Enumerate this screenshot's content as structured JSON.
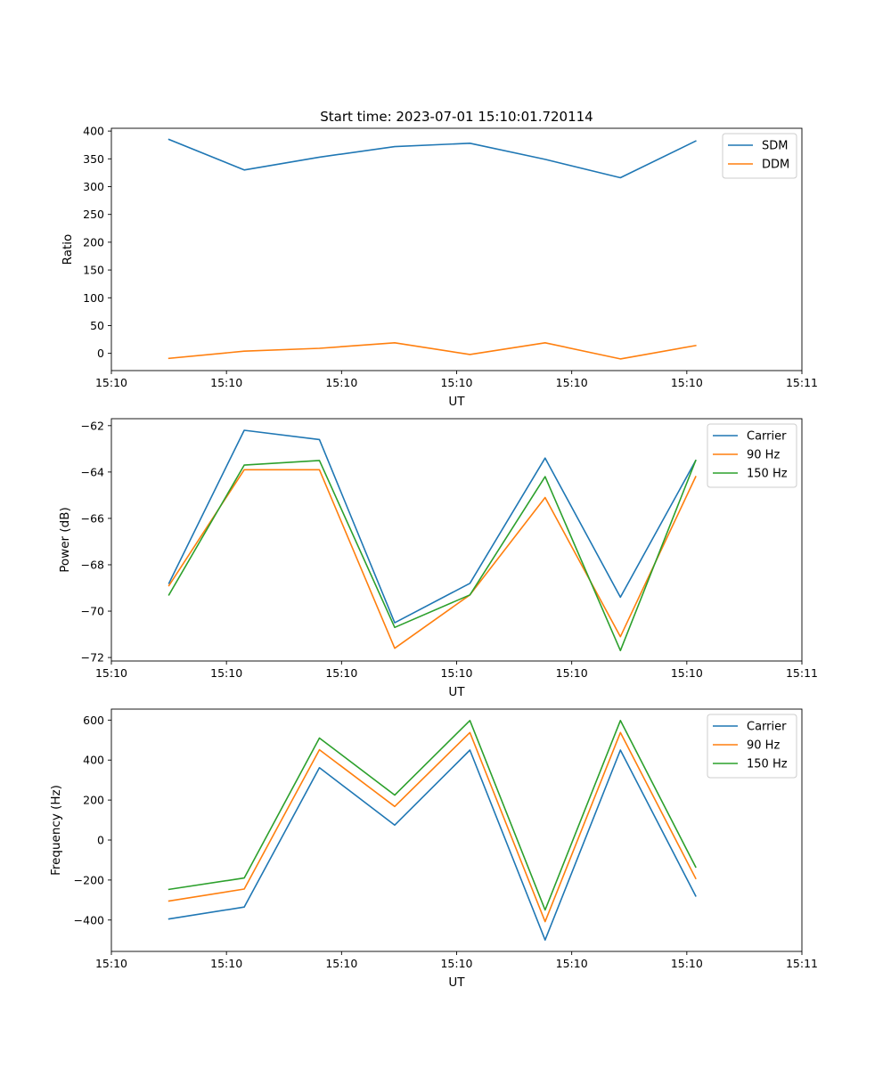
{
  "figure": {
    "title": "Start time: 2023-07-01 15:10:01.720114"
  },
  "chart_data": [
    {
      "type": "line",
      "title": "Start time: 2023-07-01 15:10:01.720114",
      "xlabel": "UT",
      "ylabel": "Ratio",
      "x": [
        0.5,
        1.154,
        1.808,
        2.462,
        3.115,
        3.769,
        4.423,
        5.077
      ],
      "xlim": [
        0,
        6
      ],
      "ylim": [
        -31,
        405
      ],
      "x_ticks": [
        0,
        1,
        2,
        3,
        4,
        5,
        6
      ],
      "x_tick_labels": [
        "15:10",
        "15:10",
        "15:10",
        "15:10",
        "15:10",
        "15:10",
        "15:11"
      ],
      "y_ticks": [
        0,
        50,
        100,
        150,
        200,
        250,
        300,
        350,
        400
      ],
      "y_tick_labels": [
        "0",
        "50",
        "100",
        "150",
        "200",
        "250",
        "300",
        "350",
        "400"
      ],
      "legend_position": "top-right",
      "grid": false,
      "series": [
        {
          "name": "SDM",
          "color": "#1f77b4",
          "values": [
            385,
            330,
            353,
            372,
            378,
            349,
            316,
            382
          ]
        },
        {
          "name": "DDM",
          "color": "#ff7f0e",
          "values": [
            -9,
            4,
            9,
            19,
            -2,
            19,
            -10,
            14
          ]
        }
      ]
    },
    {
      "type": "line",
      "title": "",
      "xlabel": "UT",
      "ylabel": "Power (dB)",
      "x": [
        0.5,
        1.154,
        1.808,
        2.462,
        3.115,
        3.769,
        4.423,
        5.077
      ],
      "xlim": [
        0,
        6
      ],
      "ylim": [
        -72.15,
        -61.7
      ],
      "x_ticks": [
        0,
        1,
        2,
        3,
        4,
        5,
        6
      ],
      "x_tick_labels": [
        "15:10",
        "15:10",
        "15:10",
        "15:10",
        "15:10",
        "15:10",
        "15:11"
      ],
      "y_ticks": [
        -72,
        -70,
        -68,
        -66,
        -64,
        -62
      ],
      "y_tick_labels": [
        "−72",
        "−70",
        "−68",
        "−66",
        "−64",
        "−62"
      ],
      "legend_position": "top-right",
      "grid": false,
      "series": [
        {
          "name": "Carrier",
          "color": "#1f77b4",
          "values": [
            -68.8,
            -62.2,
            -62.6,
            -70.5,
            -68.8,
            -63.4,
            -69.4,
            -63.5
          ]
        },
        {
          "name": "90 Hz",
          "color": "#ff7f0e",
          "values": [
            -68.9,
            -63.9,
            -63.9,
            -71.6,
            -69.3,
            -65.1,
            -71.1,
            -64.2
          ]
        },
        {
          "name": "150 Hz",
          "color": "#2ca02c",
          "values": [
            -69.3,
            -63.7,
            -63.5,
            -70.7,
            -69.3,
            -64.2,
            -71.7,
            -63.5
          ]
        }
      ]
    },
    {
      "type": "line",
      "title": "",
      "xlabel": "UT",
      "ylabel": "Frequency (Hz)",
      "x": [
        0.5,
        1.154,
        1.808,
        2.462,
        3.115,
        3.769,
        4.423,
        5.077
      ],
      "xlim": [
        0,
        6
      ],
      "ylim": [
        -557,
        655
      ],
      "x_ticks": [
        0,
        1,
        2,
        3,
        4,
        5,
        6
      ],
      "x_tick_labels": [
        "15:10",
        "15:10",
        "15:10",
        "15:10",
        "15:10",
        "15:10",
        "15:11"
      ],
      "y_ticks": [
        -400,
        -200,
        0,
        200,
        400,
        600
      ],
      "y_tick_labels": [
        "−400",
        "−200",
        "0",
        "200",
        "400",
        "600"
      ],
      "legend_position": "top-right",
      "grid": false,
      "series": [
        {
          "name": "Carrier",
          "color": "#1f77b4",
          "values": [
            -395,
            -335,
            362,
            75,
            450,
            -500,
            450,
            -280
          ]
        },
        {
          "name": "90 Hz",
          "color": "#ff7f0e",
          "values": [
            -305,
            -245,
            452,
            168,
            538,
            -408,
            538,
            -192
          ]
        },
        {
          "name": "150 Hz",
          "color": "#2ca02c",
          "values": [
            -247,
            -190,
            510,
            225,
            598,
            -350,
            598,
            -135
          ]
        }
      ]
    }
  ]
}
